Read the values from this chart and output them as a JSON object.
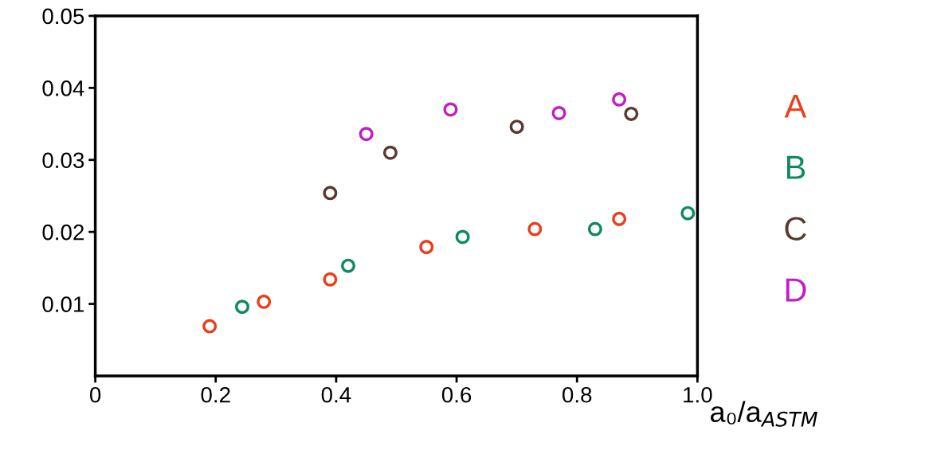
{
  "chart_data": {
    "type": "scatter",
    "xlabel": "a₀/a$_{ASTM}$",
    "xlim": [
      0,
      1.0
    ],
    "ylim": [
      0,
      0.05
    ],
    "xticks": [
      0,
      {
        "value": 0.2,
        "label": "0.2"
      },
      {
        "value": 0.4,
        "label": "0.4"
      },
      {
        "value": 0.6,
        "label": "0.6"
      },
      {
        "value": 0.8,
        "label": "0.8"
      },
      {
        "value": 1.0,
        "label": "1.0"
      }
    ],
    "yticks": [
      0.01,
      0.02,
      0.03,
      0.04,
      0.05
    ],
    "grid": false,
    "legend": "right",
    "marker": "circle",
    "series": [
      {
        "name": "A",
        "color": "#e8401c",
        "x": [
          0.19,
          0.28,
          0.39,
          0.55,
          0.73,
          0.87
        ],
        "values": [
          0.0069,
          0.0103,
          0.0134,
          0.0179,
          0.0204,
          0.0218
        ]
      },
      {
        "name": "B",
        "color": "#0f8a5f",
        "x": [
          0.244,
          0.42,
          0.61,
          0.83,
          0.984
        ],
        "values": [
          0.0096,
          0.0153,
          0.0193,
          0.0204,
          0.0226
        ]
      },
      {
        "name": "C",
        "color": "#5a3a2e",
        "x": [
          0.39,
          0.49,
          0.7,
          0.89
        ],
        "values": [
          0.0254,
          0.031,
          0.0346,
          0.0364
        ]
      },
      {
        "name": "D",
        "color": "#c21fc2",
        "x": [
          0.45,
          0.59,
          0.77,
          0.87
        ],
        "values": [
          0.0336,
          0.037,
          0.0365,
          0.0384
        ]
      }
    ]
  }
}
